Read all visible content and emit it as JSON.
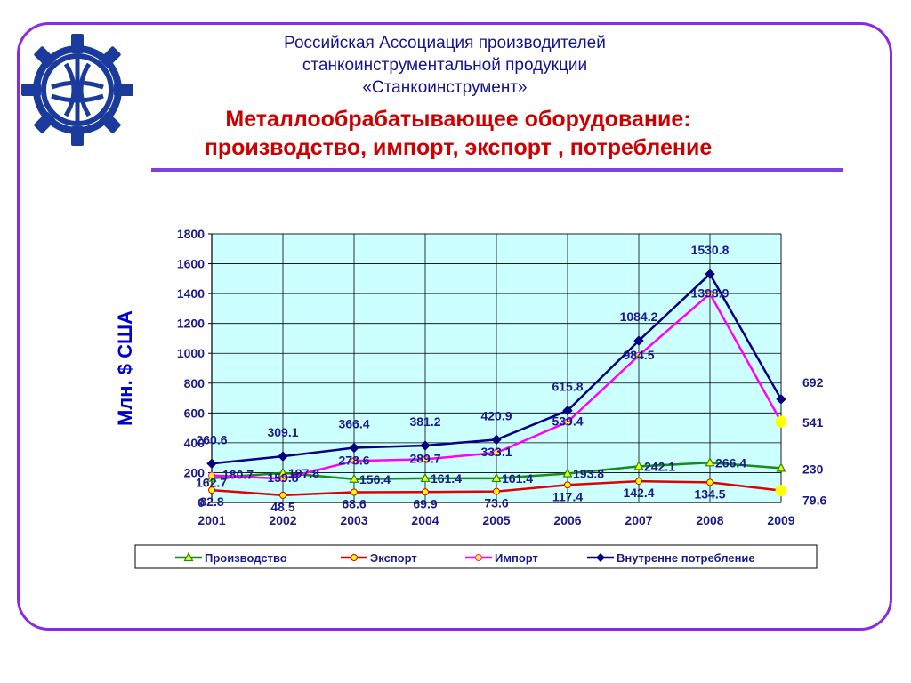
{
  "header": {
    "org_lines": [
      "Российская Ассоциация производителей",
      "станкоинструментальной продукции",
      "«Станкоинструмент»"
    ],
    "title_lines": [
      "Металлообрабатывающее оборудование:",
      "производство, импорт, экспорт , потребление"
    ]
  },
  "logo": {
    "icon": "gear-globe-logo-icon",
    "color": "#1a3a9c"
  },
  "chart_data": {
    "type": "line",
    "ylabel": "Млн. $ США",
    "xlabel": "",
    "categories": [
      "2001",
      "2002",
      "2003",
      "2004",
      "2005",
      "2006",
      "2007",
      "2008",
      "2009"
    ],
    "ylim": [
      0,
      1800
    ],
    "yticks": [
      0,
      200,
      400,
      600,
      800,
      1000,
      1200,
      1400,
      1600,
      1800
    ],
    "grid": true,
    "plot_background": "#ccffff",
    "legend_position": "bottom",
    "series": [
      {
        "name": "Производство",
        "color": "#1a8a1a",
        "marker": "triangle",
        "values": [
          162.7,
          197.8,
          156.4,
          161.4,
          161.4,
          193.8,
          242.1,
          266.4,
          230
        ],
        "labels": [
          "162.7",
          "197.8",
          "156.4",
          "161.4",
          "161.4",
          "193.8",
          "242.1",
          "266.4",
          "230"
        ]
      },
      {
        "name": "Экспорт",
        "color": "#e00000",
        "marker": "circle",
        "values": [
          82.8,
          48.5,
          68.6,
          69.9,
          73.6,
          117.4,
          142.4,
          134.5,
          79.6
        ],
        "labels": [
          "82.8",
          "48.5",
          "68.6",
          "69.9",
          "73.6",
          "117.4",
          "142.4",
          "134.5",
          "79.6"
        ]
      },
      {
        "name": "Импорт",
        "color": "#ff00ff",
        "marker": "circle",
        "values": [
          180.7,
          159.8,
          278.6,
          289.7,
          333.1,
          539.4,
          984.5,
          1398.9,
          541
        ],
        "labels": [
          "180.7",
          "159.8",
          "278.6",
          "289.7",
          "333.1",
          "539.4",
          "984.5",
          "1398.9",
          "541"
        ]
      },
      {
        "name": "Внутренне потребление",
        "color": "#000080",
        "marker": "diamond",
        "values": [
          260.6,
          309.1,
          366.4,
          381.2,
          420.9,
          615.8,
          1084.2,
          1530.8,
          692
        ],
        "labels": [
          "260.6",
          "309.1",
          "366.4",
          "381.2",
          "420.9",
          "615.8",
          "1084.2",
          "1530.8",
          "692"
        ]
      }
    ]
  }
}
